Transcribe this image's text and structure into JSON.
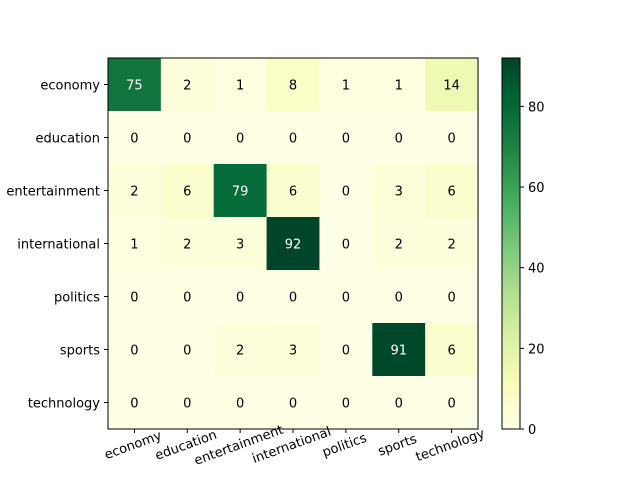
{
  "chart_data": {
    "type": "heatmap",
    "title": "",
    "xlabel": "",
    "ylabel": "",
    "row_labels": [
      "economy",
      "education",
      "entertainment",
      "international",
      "politics",
      "sports",
      "technology"
    ],
    "col_labels": [
      "economy",
      "education",
      "entertainment",
      "international",
      "politics",
      "sports",
      "technology"
    ],
    "values": [
      [
        75,
        2,
        1,
        8,
        1,
        1,
        14
      ],
      [
        0,
        0,
        0,
        0,
        0,
        0,
        0
      ],
      [
        2,
        6,
        79,
        6,
        0,
        3,
        6
      ],
      [
        1,
        2,
        3,
        92,
        0,
        2,
        2
      ],
      [
        0,
        0,
        0,
        0,
        0,
        0,
        0
      ],
      [
        0,
        0,
        2,
        3,
        0,
        91,
        6
      ],
      [
        0,
        0,
        0,
        0,
        0,
        0,
        0
      ]
    ],
    "colormap": "YlGn",
    "vmin": 0,
    "vmax": 92,
    "colorbar": {
      "ticks": [
        0,
        20,
        40,
        60,
        80
      ],
      "position": "right"
    },
    "x_tick_rotation_degrees": 20,
    "grid": false
  }
}
